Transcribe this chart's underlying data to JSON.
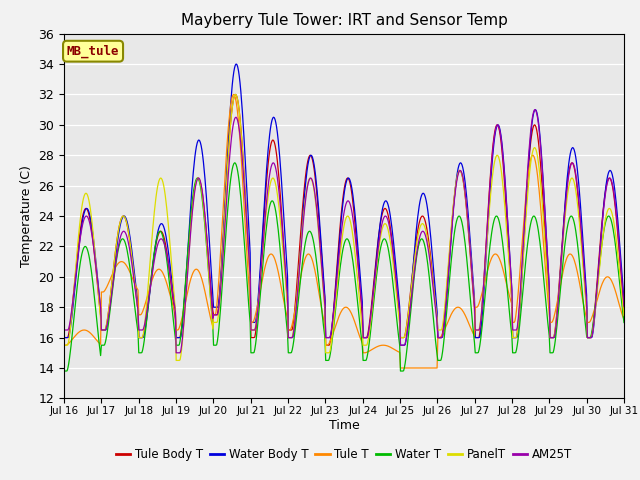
{
  "title": "Mayberry Tule Tower: IRT and Sensor Temp",
  "xlabel": "Time",
  "ylabel": "Temperature (C)",
  "ylim": [
    12,
    36
  ],
  "yticks": [
    12,
    14,
    16,
    18,
    20,
    22,
    24,
    26,
    28,
    30,
    32,
    34,
    36
  ],
  "bg_color": "#e8e8e8",
  "fig_bg": "#f2f2f2",
  "watermark": "MB_tule",
  "legend": [
    {
      "label": "Tule Body T",
      "color": "#cc0000"
    },
    {
      "label": "Water Body T",
      "color": "#0000dd"
    },
    {
      "label": "Tule T",
      "color": "#ff8800"
    },
    {
      "label": "Water T",
      "color": "#00bb00"
    },
    {
      "label": "PanelT",
      "color": "#dddd00"
    },
    {
      "label": "AM25T",
      "color": "#9900aa"
    }
  ],
  "xtick_labels": [
    "Jul 16",
    "Jul 17",
    "Jul 18",
    "Jul 19",
    "Jul 20",
    "Jul 21",
    "Jul 22",
    "Jul 23",
    "Jul 24",
    "Jul 25",
    "Jul 26",
    "Jul 27",
    "Jul 28",
    "Jul 29",
    "Jul 30",
    "Jul 31"
  ],
  "days": 15,
  "pts_per_day": 48,
  "series": {
    "tule_body_t": {
      "color": "#cc0000",
      "label": "Tule Body T",
      "peaks": [
        24.5,
        16.0,
        24.0,
        16.5,
        23.0,
        16.0,
        26.5,
        16.0,
        32.0,
        17.5,
        29.0,
        16.0,
        28.0,
        16.5,
        26.5,
        15.5,
        24.5,
        16.0,
        24.0,
        16.0,
        27.0,
        16.0,
        30.0,
        16.0,
        30.0,
        16.0,
        27.5,
        16.0,
        26.5,
        16.0
      ],
      "phase": 0.6
    },
    "water_body_t": {
      "color": "#0000dd",
      "label": "Water Body T",
      "peaks": [
        24.5,
        16.0,
        24.0,
        16.5,
        23.5,
        16.0,
        29.0,
        16.0,
        34.0,
        18.0,
        30.5,
        17.0,
        28.0,
        16.0,
        26.5,
        16.0,
        25.0,
        16.0,
        25.5,
        15.5,
        27.5,
        16.0,
        30.0,
        16.0,
        31.0,
        16.0,
        28.5,
        16.0,
        27.0,
        16.0
      ],
      "phase": 0.62
    },
    "tule_t": {
      "color": "#ff8800",
      "label": "Tule T",
      "peaks": [
        16.5,
        15.5,
        21.0,
        19.0,
        20.5,
        17.5,
        20.5,
        16.5,
        32.0,
        17.5,
        21.5,
        17.0,
        21.5,
        16.5,
        18.0,
        15.5,
        15.5,
        15.0,
        14.0,
        14.0,
        18.0,
        16.0,
        21.5,
        18.0,
        28.0,
        17.0,
        21.5,
        17.0,
        20.0,
        17.0
      ],
      "phase": 0.55
    },
    "water_t": {
      "color": "#00bb00",
      "label": "Water T",
      "peaks": [
        22.0,
        13.8,
        22.5,
        15.5,
        23.0,
        15.0,
        26.5,
        15.5,
        27.5,
        15.5,
        25.0,
        15.0,
        23.0,
        15.0,
        22.5,
        14.5,
        22.5,
        14.5,
        22.5,
        13.8,
        24.0,
        14.5,
        24.0,
        15.0,
        24.0,
        15.0,
        24.0,
        15.0,
        24.0,
        16.0
      ],
      "phase": 0.58
    },
    "panel_t": {
      "color": "#dddd00",
      "label": "PanelT",
      "peaks": [
        25.5,
        15.5,
        24.0,
        16.5,
        26.5,
        16.0,
        26.5,
        14.5,
        32.0,
        17.0,
        26.5,
        16.5,
        26.5,
        16.0,
        24.0,
        15.0,
        23.5,
        15.5,
        23.5,
        16.0,
        27.0,
        16.5,
        28.0,
        16.5,
        28.5,
        16.0,
        26.5,
        16.0,
        24.5,
        16.0
      ],
      "phase": 0.6
    },
    "am25t": {
      "color": "#9900aa",
      "label": "AM25T",
      "peaks": [
        24.0,
        16.5,
        23.0,
        16.5,
        22.5,
        16.5,
        26.5,
        15.0,
        30.5,
        17.5,
        27.5,
        16.5,
        26.5,
        16.0,
        25.0,
        16.0,
        24.0,
        16.0,
        23.0,
        15.5,
        27.0,
        16.0,
        30.0,
        16.5,
        31.0,
        16.5,
        27.5,
        16.0,
        26.5,
        16.0
      ],
      "phase": 0.61
    }
  }
}
